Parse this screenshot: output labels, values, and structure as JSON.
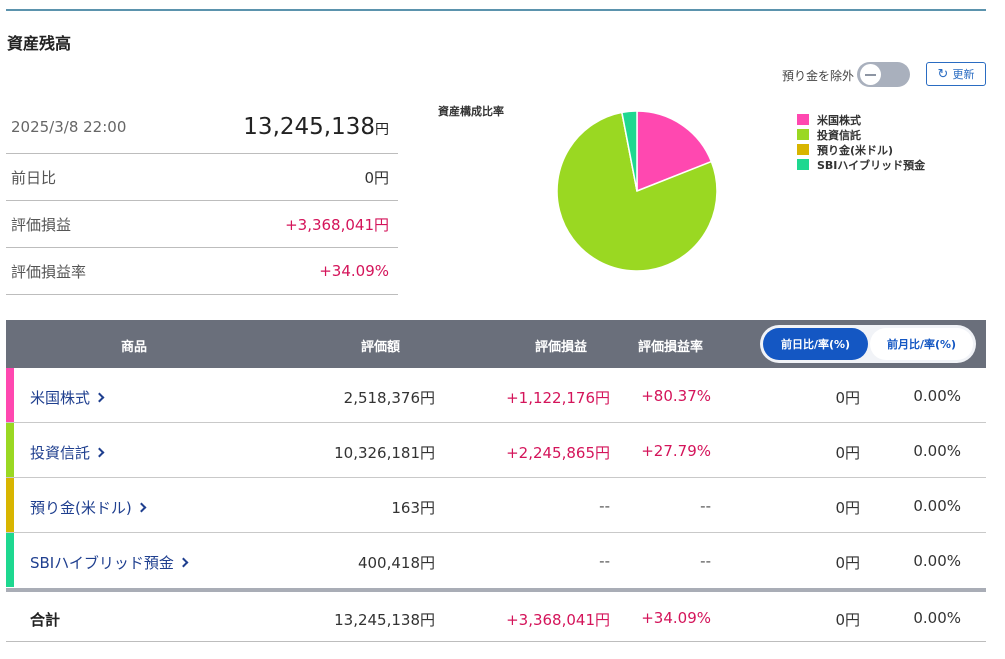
{
  "page": {
    "title": "資産残高"
  },
  "toolbar": {
    "exclude_deposit_label": "預り金を除外",
    "refresh_label": "更新"
  },
  "summary": {
    "datetime": "2025/3/8 22:00",
    "total_value": "13,245,138",
    "total_unit": "円",
    "rows": [
      {
        "label": "前日比",
        "value": "0円"
      },
      {
        "label": "評価損益",
        "value": "+3,368,041円"
      },
      {
        "label": "評価損益率",
        "value": "+34.09%"
      }
    ]
  },
  "chart": {
    "title": "資産構成比率",
    "legend": [
      {
        "label": "米国株式"
      },
      {
        "label": "投資信託"
      },
      {
        "label": "預り金(米ドル)"
      },
      {
        "label": "SBIハイブリッド預金"
      }
    ]
  },
  "chart_data": {
    "type": "pie",
    "title": "資産構成比率",
    "categories": [
      "米国株式",
      "投資信託",
      "預り金(米ドル)",
      "SBIハイブリッド預金"
    ],
    "values": [
      2518376,
      10326181,
      163,
      400418
    ],
    "colors": [
      "#ff48b0",
      "#9ad822",
      "#d8b500",
      "#1ed890"
    ],
    "legend_position": "right"
  },
  "colors": {
    "us_stock": "#ff48b0",
    "mutual_fund": "#9ad822",
    "usd_deposit": "#d8b500",
    "hybrid_deposit": "#1ed890",
    "positive": "#d4145a",
    "header_bg": "#6a6f7b",
    "accent_blue": "#1457c3"
  },
  "table": {
    "headers": {
      "product": "商品",
      "valuation": "評価額",
      "gain": "評価損益",
      "gain_rate": "評価損益率"
    },
    "toggle": {
      "active": "前日比/率(%)",
      "inactive": "前月比/率(%)"
    },
    "rows": [
      {
        "name": "米国株式",
        "valuation": "2,518,376円",
        "gain": "+1,122,176円",
        "gain_rate": "+80.37%",
        "change": "0円",
        "change_rate": "0.00%"
      },
      {
        "name": "投資信託",
        "valuation": "10,326,181円",
        "gain": "+2,245,865円",
        "gain_rate": "+27.79%",
        "change": "0円",
        "change_rate": "0.00%"
      },
      {
        "name": "預り金(米ドル)",
        "valuation": "163円",
        "gain": "--",
        "gain_rate": "--",
        "change": "0円",
        "change_rate": "0.00%"
      },
      {
        "name": "SBIハイブリッド預金",
        "valuation": "400,418円",
        "gain": "--",
        "gain_rate": "--",
        "change": "0円",
        "change_rate": "0.00%"
      }
    ],
    "total": {
      "label": "合計",
      "valuation": "13,245,138円",
      "gain": "+3,368,041円",
      "gain_rate": "+34.09%",
      "change": "0円",
      "change_rate": "0.00%"
    }
  }
}
